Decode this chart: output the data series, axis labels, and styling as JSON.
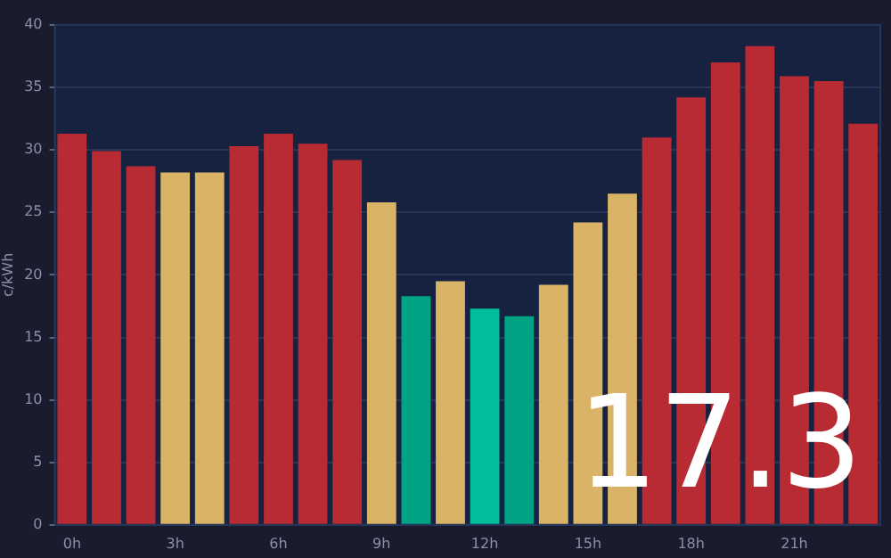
{
  "chart_data": {
    "type": "bar",
    "ylabel": "c/kWh",
    "categories": [
      "0h",
      null,
      null,
      "3h",
      null,
      null,
      "6h",
      null,
      null,
      "9h",
      null,
      null,
      "12h",
      null,
      null,
      "15h",
      null,
      null,
      "18h",
      null,
      null,
      "21h",
      null,
      null
    ],
    "values": [
      31.3,
      29.9,
      28.7,
      28.2,
      28.2,
      30.3,
      31.3,
      30.5,
      29.2,
      25.8,
      18.3,
      19.5,
      17.3,
      16.7,
      19.2,
      24.2,
      26.5,
      31.0,
      34.2,
      37.0,
      38.3,
      35.9,
      35.5,
      32.1
    ],
    "colors": [
      "#b92b33",
      "#b92b33",
      "#b92b33",
      "#d9b366",
      "#d9b366",
      "#b92b33",
      "#b92b33",
      "#b92b33",
      "#b92b33",
      "#d9b366",
      "#00a383",
      "#d9b366",
      "#00bf9a",
      "#00a383",
      "#d9b366",
      "#d9b366",
      "#d9b366",
      "#b92b33",
      "#b92b33",
      "#b92b33",
      "#b92b33",
      "#b92b33",
      "#b92b33",
      "#b92b33"
    ],
    "ylim": [
      0,
      40
    ],
    "yticks": [
      0,
      5,
      10,
      15,
      20,
      25,
      30,
      35,
      40
    ],
    "grid": "y",
    "annotations": [
      "17.3"
    ]
  }
}
